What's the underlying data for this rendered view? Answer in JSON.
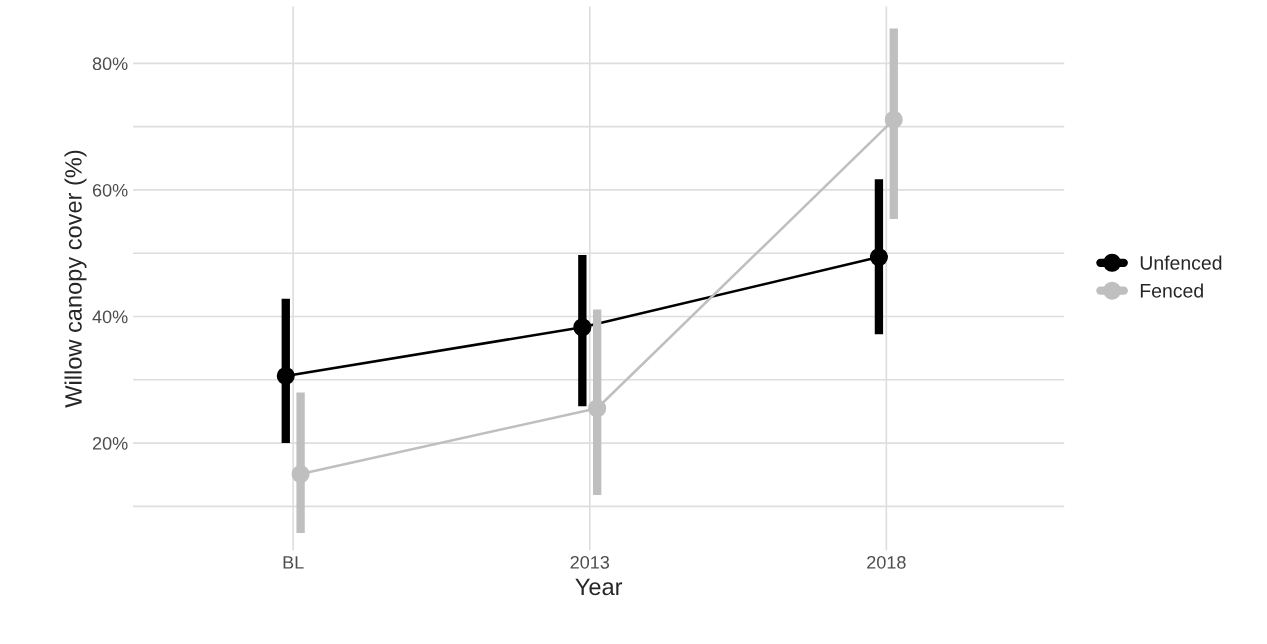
{
  "chart_data": {
    "type": "line",
    "xlabel": "Year",
    "ylabel": "Willow canopy cover (%)",
    "categories": [
      "BL",
      "2013",
      "2018"
    ],
    "series": [
      {
        "name": "Unfenced",
        "color": "#000000",
        "values": [
          30.6,
          38.3,
          49.4
        ],
        "errors": [
          [
            20,
            42.8
          ],
          [
            25.8,
            49.7
          ],
          [
            37.2,
            61.7
          ]
        ]
      },
      {
        "name": "Fenced",
        "color": "#bfbfbf",
        "values": [
          15.1,
          25.5,
          71.1
        ],
        "errors": [
          [
            5.8,
            28
          ],
          [
            11.8,
            41.1
          ],
          [
            55.4,
            85.5
          ]
        ]
      }
    ],
    "ylim": [
      3,
      89
    ],
    "yticks": [
      {
        "value": 10,
        "label": null
      },
      {
        "value": 20,
        "label": "20%"
      },
      {
        "value": 30,
        "label": null
      },
      {
        "value": 40,
        "label": "40%"
      },
      {
        "value": 50,
        "label": null
      },
      {
        "value": 60,
        "label": "60%"
      },
      {
        "value": 70,
        "label": null
      },
      {
        "value": 80,
        "label": "80%"
      }
    ],
    "grid": true,
    "legend": "right",
    "marker": "circle",
    "line_style": "solid"
  }
}
